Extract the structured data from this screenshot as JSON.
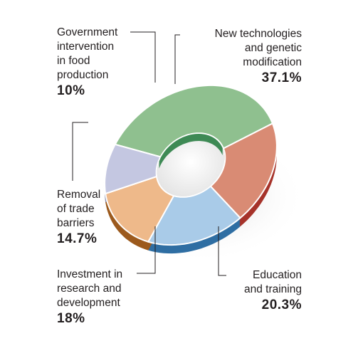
{
  "chart_data": {
    "type": "pie",
    "style": "donut",
    "title": "",
    "slices": [
      {
        "label_lines": [
          "New technologies",
          "and genetic",
          "modification"
        ],
        "value": 37.1,
        "value_text": "37.1%",
        "color": "#8fc08f",
        "side": "#3e8a55"
      },
      {
        "label_lines": [
          "Education",
          "and training"
        ],
        "value": 20.3,
        "value_text": "20.3%",
        "color": "#d98b74",
        "side": "#a6332a"
      },
      {
        "label_lines": [
          "Investment in",
          "research and",
          "development"
        ],
        "value": 18,
        "value_text": "18%",
        "color": "#a9cbe8",
        "side": "#2f6ea3"
      },
      {
        "label_lines": [
          "Removal",
          "of trade",
          "barriers"
        ],
        "value": 14.7,
        "value_text": "14.7%",
        "color": "#eeb98a",
        "side": "#9c5a1d"
      },
      {
        "label_lines": [
          "Government",
          "intervention",
          "in food",
          "production"
        ],
        "value": 10,
        "value_text": "10%",
        "color": "#c4c7e1",
        "side": "#8689a8"
      }
    ]
  }
}
